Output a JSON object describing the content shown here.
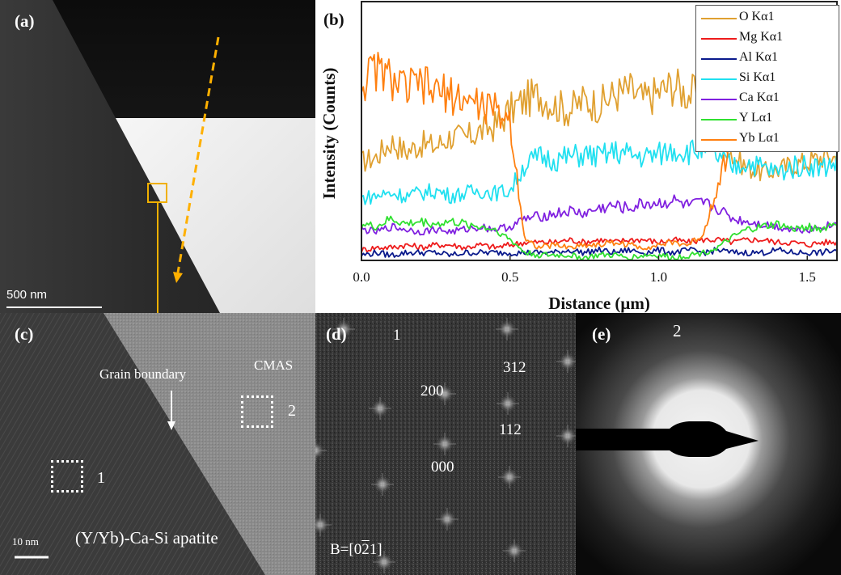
{
  "figure": {
    "panel_a": {
      "label": "(a)",
      "scale_bar": "500 nm"
    },
    "panel_b": {
      "label": "(b)"
    },
    "panel_c": {
      "label": "(c)",
      "annotations": {
        "grain_boundary": "Grain boundary",
        "cmas": "CMAS",
        "region_1": "1",
        "region_2": "2",
        "phase": "(Y/Yb)-Ca-Si apatite"
      },
      "scale_bar": "10 nm"
    },
    "panel_d": {
      "label": "(d)",
      "region": "1",
      "spots": [
        "312",
        "200",
        "112",
        "000"
      ],
      "zone_axis_prefix": "B=[0",
      "zone_axis_bar_digit": "2",
      "zone_axis_suffix": "1]"
    },
    "panel_e": {
      "label": "(e)",
      "region": "2"
    }
  },
  "chart_data": {
    "type": "line",
    "title": "",
    "xlabel": "Distance (μm)",
    "ylabel": "Intensity (Counts)",
    "xlim": [
      0,
      1.6
    ],
    "ylim": [
      0,
      100
    ],
    "xticks": [
      0.0,
      0.5,
      1.0,
      1.5
    ],
    "xtick_labels": [
      "0.0",
      "0.5",
      "1.0",
      "1.5"
    ],
    "grid": false,
    "legend_position": "top-right",
    "x": [
      0.0,
      0.05,
      0.1,
      0.15,
      0.2,
      0.25,
      0.3,
      0.35,
      0.4,
      0.45,
      0.5,
      0.55,
      0.6,
      0.65,
      0.7,
      0.75,
      0.8,
      0.85,
      0.9,
      0.95,
      1.0,
      1.05,
      1.1,
      1.15,
      1.2,
      1.25,
      1.3,
      1.35,
      1.4,
      1.45,
      1.5,
      1.55,
      1.6
    ],
    "series": [
      {
        "name": "O Kα1",
        "color": "#e0a030",
        "values": [
          38,
          40,
          46,
          42,
          45,
          44,
          48,
          47,
          50,
          52,
          58,
          62,
          64,
          60,
          58,
          62,
          60,
          64,
          66,
          62,
          65,
          68,
          64,
          66,
          58,
          40,
          36,
          34,
          35,
          37,
          38,
          40,
          40
        ]
      },
      {
        "name": "Mg Kα1",
        "color": "#ee1c1c",
        "values": [
          4,
          5,
          5,
          6,
          5,
          6,
          6,
          5,
          6,
          5,
          6,
          7,
          7,
          7,
          8,
          7,
          8,
          7,
          8,
          8,
          7,
          8,
          7,
          8,
          8,
          7,
          8,
          8,
          7,
          7,
          6,
          7,
          7
        ]
      },
      {
        "name": "Al Kα1",
        "color": "#0a1a8c",
        "values": [
          2,
          3,
          2,
          3,
          3,
          3,
          2,
          3,
          3,
          3,
          3,
          3,
          3,
          3,
          4,
          3,
          4,
          3,
          4,
          3,
          4,
          3,
          4,
          3,
          4,
          3,
          3,
          3,
          4,
          3,
          3,
          3,
          4
        ]
      },
      {
        "name": "Si Kα1",
        "color": "#20e0f0",
        "values": [
          24,
          25,
          26,
          25,
          26,
          27,
          25,
          26,
          27,
          26,
          27,
          37,
          40,
          39,
          40,
          41,
          40,
          42,
          41,
          40,
          41,
          43,
          42,
          43,
          40,
          36,
          38,
          36,
          34,
          36,
          37,
          36,
          38
        ]
      },
      {
        "name": "Ca Kα1",
        "color": "#8020e0",
        "values": [
          12,
          11,
          13,
          12,
          11,
          12,
          11,
          12,
          13,
          12,
          13,
          16,
          17,
          18,
          19,
          18,
          20,
          21,
          20,
          22,
          22,
          23,
          21,
          22,
          20,
          16,
          15,
          14,
          13,
          12,
          12,
          13,
          14
        ]
      },
      {
        "name": "Y Lα1",
        "color": "#30e030",
        "values": [
          14,
          13,
          16,
          14,
          15,
          14,
          15,
          14,
          13,
          12,
          8,
          3,
          2,
          2,
          2,
          1,
          2,
          2,
          1,
          2,
          2,
          1,
          2,
          3,
          5,
          9,
          12,
          13,
          14,
          12,
          13,
          12,
          15
        ]
      },
      {
        "name": "Yb Lα1",
        "color": "#ff8010",
        "values": [
          68,
          74,
          70,
          66,
          68,
          65,
          64,
          62,
          60,
          58,
          54,
          8,
          5,
          6,
          5,
          6,
          6,
          7,
          6,
          5,
          6,
          7,
          6,
          10,
          30,
          48,
          55,
          60,
          62,
          64,
          66,
          68,
          70
        ]
      }
    ]
  }
}
